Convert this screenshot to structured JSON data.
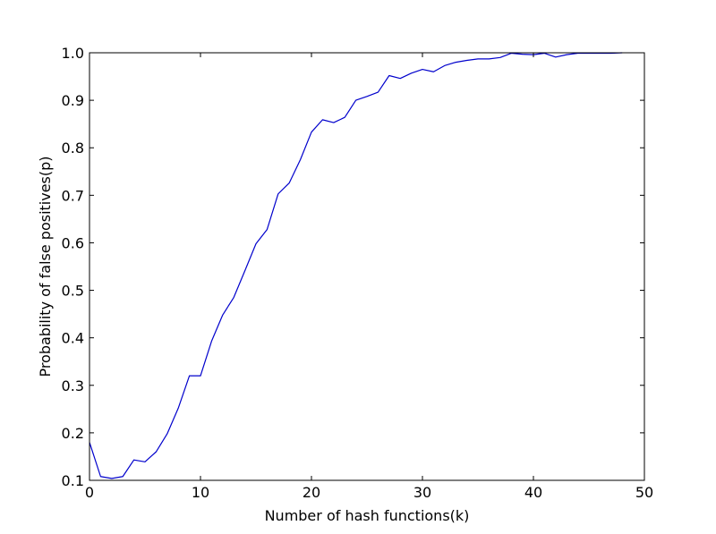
{
  "chart_data": {
    "type": "line",
    "xlabel": "Number of hash functions(k)",
    "ylabel": "Probability of false positives(p)",
    "xlim": [
      0,
      50
    ],
    "ylim": [
      0.1,
      1.0
    ],
    "x_ticks": [
      0,
      10,
      20,
      30,
      40,
      50
    ],
    "y_ticks": [
      0.1,
      0.2,
      0.3,
      0.4,
      0.5,
      0.6,
      0.7,
      0.8,
      0.9,
      1.0
    ],
    "x_tick_labels": [
      "0",
      "10",
      "20",
      "30",
      "40",
      "50"
    ],
    "y_tick_labels": [
      "0.1",
      "0.2",
      "0.3",
      "0.4",
      "0.5",
      "0.6",
      "0.7",
      "0.8",
      "0.9",
      "1.0"
    ],
    "grid": false,
    "series": [
      {
        "color": "#0000cc",
        "x": [
          0,
          1,
          2,
          3,
          4,
          5,
          6,
          7,
          8,
          9,
          10,
          11,
          12,
          13,
          14,
          15,
          16,
          17,
          18,
          19,
          20,
          21,
          22,
          23,
          24,
          25,
          26,
          27,
          28,
          29,
          30,
          31,
          32,
          33,
          34,
          35,
          36,
          37,
          38,
          39,
          40,
          41,
          42,
          43,
          44,
          45,
          46,
          47,
          48
        ],
        "y": [
          0.18,
          0.108,
          0.104,
          0.108,
          0.143,
          0.139,
          0.16,
          0.198,
          0.252,
          0.32,
          0.32,
          0.393,
          0.448,
          0.485,
          0.541,
          0.598,
          0.628,
          0.703,
          0.726,
          0.775,
          0.833,
          0.859,
          0.853,
          0.864,
          0.9,
          0.908,
          0.917,
          0.952,
          0.946,
          0.957,
          0.965,
          0.96,
          0.973,
          0.98,
          0.984,
          0.987,
          0.987,
          0.99,
          0.999,
          0.997,
          0.996,
          0.999,
          0.991,
          0.996,
          0.999,
          0.999,
          0.999,
          0.999,
          1.0
        ]
      }
    ]
  }
}
